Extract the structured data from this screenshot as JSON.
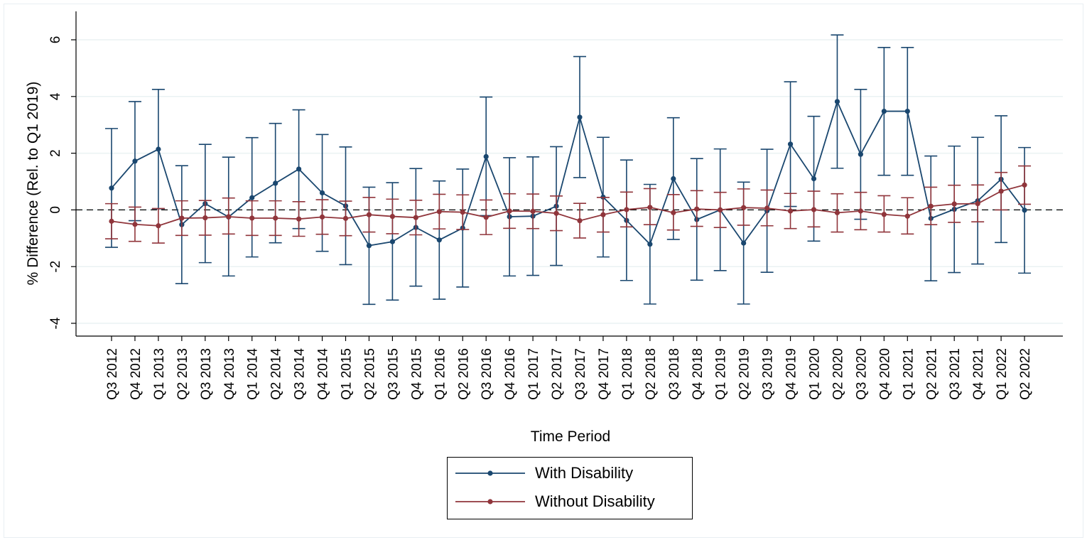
{
  "chart_data": {
    "type": "line",
    "xlabel": "Time Period",
    "ylabel": "% Difference (Rel. to Q1 2019)",
    "ylim": [
      -4,
      6
    ],
    "yticks": [
      -4,
      -2,
      0,
      2,
      4,
      6
    ],
    "ytick_labels": [
      "-4",
      "-2",
      "0",
      "2",
      "4",
      "6"
    ],
    "grid": true,
    "reference_line": {
      "y": 0,
      "style": "dashed"
    },
    "legend_position": "bottom-center",
    "categories": [
      "Q3 2012",
      "Q4 2012",
      "Q1 2013",
      "Q2 2013",
      "Q3 2013",
      "Q4 2013",
      "Q1 2014",
      "Q2 2014",
      "Q3 2014",
      "Q4 2014",
      "Q1 2015",
      "Q2 2015",
      "Q3 2015",
      "Q4 2015",
      "Q1 2016",
      "Q2 2016",
      "Q3 2016",
      "Q4 2016",
      "Q1 2017",
      "Q2 2017",
      "Q3 2017",
      "Q4 2017",
      "Q1 2018",
      "Q2 2018",
      "Q3 2018",
      "Q4 2018",
      "Q1 2019",
      "Q2 2019",
      "Q3 2019",
      "Q4 2019",
      "Q1 2020",
      "Q2 2020",
      "Q3 2020",
      "Q4 2020",
      "Q1 2021",
      "Q2 2021",
      "Q3 2021",
      "Q4 2021",
      "Q1 2022",
      "Q2 2022"
    ],
    "series": [
      {
        "name": "With Disability",
        "color": "#1a476f",
        "values": [
          0.77,
          1.72,
          2.14,
          -0.52,
          0.22,
          -0.25,
          0.43,
          0.94,
          1.44,
          0.6,
          0.14,
          -1.26,
          -1.12,
          -0.62,
          -1.06,
          -0.64,
          1.88,
          -0.24,
          -0.22,
          0.13,
          3.27,
          0.45,
          -0.37,
          -1.21,
          1.1,
          -0.34,
          0.0,
          -1.17,
          -0.03,
          2.32,
          1.1,
          3.82,
          1.96,
          3.48,
          3.48,
          -0.3,
          0.02,
          0.32,
          1.08,
          -0.01
        ],
        "ci_low": [
          -1.32,
          -0.38,
          0.04,
          -2.6,
          -1.86,
          -2.33,
          -1.66,
          -1.16,
          -0.66,
          -1.46,
          -1.93,
          -3.33,
          -3.18,
          -2.69,
          -3.15,
          -2.72,
          -0.2,
          -2.33,
          -2.31,
          -1.96,
          1.14,
          -1.66,
          -2.49,
          -3.32,
          -1.04,
          -2.48,
          -2.14,
          -3.32,
          -2.2,
          0.12,
          -1.1,
          1.47,
          -0.33,
          1.22,
          1.22,
          -2.5,
          -2.21,
          -1.91,
          -1.15,
          -2.23
        ],
        "ci_high": [
          2.87,
          3.82,
          4.25,
          1.56,
          2.31,
          1.86,
          2.55,
          3.05,
          3.53,
          2.66,
          2.22,
          0.8,
          0.96,
          1.46,
          1.02,
          1.44,
          3.98,
          1.84,
          1.87,
          2.23,
          5.41,
          2.56,
          1.76,
          0.9,
          3.25,
          1.81,
          2.15,
          0.98,
          2.14,
          4.52,
          3.3,
          6.17,
          4.25,
          5.73,
          5.73,
          1.9,
          2.25,
          2.56,
          3.32,
          2.2
        ]
      },
      {
        "name": "Without Disability",
        "color": "#90353b",
        "values": [
          -0.4,
          -0.51,
          -0.56,
          -0.29,
          -0.28,
          -0.24,
          -0.29,
          -0.29,
          -0.32,
          -0.25,
          -0.3,
          -0.17,
          -0.23,
          -0.27,
          -0.06,
          -0.08,
          -0.26,
          -0.04,
          -0.05,
          -0.12,
          -0.38,
          -0.17,
          0.01,
          0.09,
          -0.1,
          0.03,
          0.0,
          0.08,
          0.06,
          -0.04,
          0.01,
          -0.1,
          -0.04,
          -0.16,
          -0.22,
          0.13,
          0.21,
          0.22,
          0.66,
          0.88
        ],
        "ci_low": [
          -1.02,
          -1.11,
          -1.17,
          -0.9,
          -0.89,
          -0.85,
          -0.9,
          -0.9,
          -0.93,
          -0.86,
          -0.91,
          -0.78,
          -0.84,
          -0.88,
          -0.67,
          -0.69,
          -0.87,
          -0.65,
          -0.66,
          -0.73,
          -0.99,
          -0.78,
          -0.6,
          -0.52,
          -0.71,
          -0.58,
          -0.62,
          -0.54,
          -0.56,
          -0.66,
          -0.6,
          -0.78,
          -0.7,
          -0.78,
          -0.85,
          -0.52,
          -0.44,
          -0.42,
          0.0,
          0.2
        ],
        "ci_high": [
          0.22,
          0.1,
          0.05,
          0.32,
          0.33,
          0.42,
          0.32,
          0.32,
          0.29,
          0.36,
          0.31,
          0.44,
          0.38,
          0.34,
          0.55,
          0.53,
          0.35,
          0.57,
          0.56,
          0.49,
          0.23,
          0.44,
          0.63,
          0.75,
          0.54,
          0.68,
          0.62,
          0.74,
          0.7,
          0.58,
          0.66,
          0.57,
          0.62,
          0.5,
          0.43,
          0.8,
          0.87,
          0.88,
          1.32,
          1.55
        ]
      }
    ]
  }
}
